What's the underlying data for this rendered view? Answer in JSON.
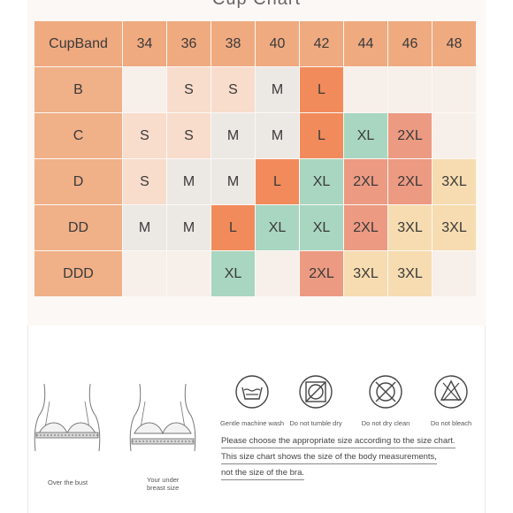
{
  "title": "Cup Chart",
  "header": {
    "corner": "CupBand",
    "bands": [
      "34",
      "36",
      "38",
      "40",
      "42",
      "44",
      "46",
      "48"
    ]
  },
  "rows": [
    {
      "cup": "B",
      "sizes": [
        "",
        "S",
        "S",
        "M",
        "L",
        "",
        "",
        ""
      ]
    },
    {
      "cup": "C",
      "sizes": [
        "S",
        "S",
        "M",
        "M",
        "L",
        "XL",
        "2XL",
        ""
      ]
    },
    {
      "cup": "D",
      "sizes": [
        "S",
        "M",
        "M",
        "L",
        "XL",
        "2XL",
        "2XL",
        "3XL"
      ]
    },
    {
      "cup": "DD",
      "sizes": [
        "M",
        "M",
        "L",
        "XL",
        "XL",
        "2XL",
        "3XL",
        "3XL"
      ]
    },
    {
      "cup": "DDD",
      "sizes": [
        "",
        "",
        "XL",
        "",
        "2XL",
        "3XL",
        "3XL",
        ""
      ]
    }
  ],
  "size_colors": {
    "S": "#f8dccc",
    "M": "#ece8e4",
    "L": "#f18b5c",
    "XL": "#a9d6c0",
    "2XL": "#ec9a82",
    "3XL": "#f6dcb0",
    "empty": "#f7efe9",
    "header": "#f0aa80"
  },
  "illustrations": {
    "left_caption": "Over the bust",
    "right_caption_line1": "Your under",
    "right_caption_line2": "breast size"
  },
  "care": [
    {
      "icon": "hand-wash-tub-icon",
      "label": "Gentle machine wash"
    },
    {
      "icon": "no-tumble-dry-icon",
      "label": "Do not tumble dry"
    },
    {
      "icon": "no-dry-clean-icon",
      "label": "Do not dry clean"
    },
    {
      "icon": "no-bleach-icon",
      "label": "Do not bleach"
    }
  ],
  "notes": [
    "Please choose the appropriate size according to the size chart.",
    "This size chart shows the size of the body measurements,",
    "not the size of the bra."
  ]
}
